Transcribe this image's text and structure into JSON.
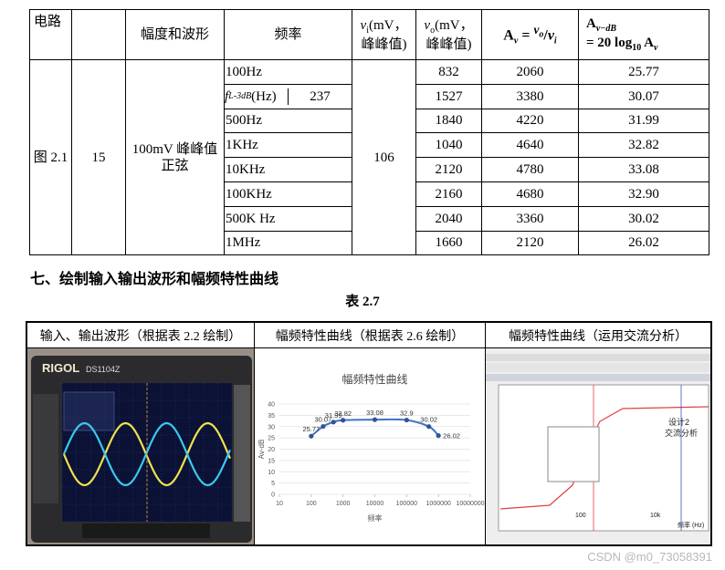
{
  "table": {
    "header": {
      "circuit": "电路",
      "waveform": "幅度和波形",
      "freq": "频率",
      "vi": {
        "v": "v",
        "sub": "i",
        "unit": "(mV，",
        "line2": "峰峰值)"
      },
      "vo": {
        "v": "v",
        "sub": "o",
        "unit": "(mV，",
        "line2": "峰峰值)"
      },
      "av": {
        "a": "A",
        "a_sub": "v",
        "eq": "=",
        "num": "v",
        "num_sub": "o",
        "slash": "/",
        "den": "v",
        "den_sub": "i"
      },
      "avdb": {
        "a": "A",
        "a_sub": "v−dB",
        "eq": "= 20 log",
        "log_sub": "10",
        "a2": "A",
        "a2_sub": "v"
      }
    },
    "circuit": "图 2.1",
    "col2": "15",
    "waveform": [
      "100mV 峰峰值",
      "正弦"
    ],
    "vi": "106",
    "rows": [
      {
        "freq": "100Hz",
        "vo": "832",
        "av": "2060",
        "db": "25.77"
      },
      {
        "freq_symbol": "f",
        "freq_sub": "L-3dB",
        "freq_unit": " (Hz)",
        "freq_value": "237",
        "vo": "1527",
        "av": "3380",
        "db": "30.07"
      },
      {
        "freq": "500Hz",
        "vo": "1840",
        "av": "4220",
        "db": "31.99"
      },
      {
        "freq": "1KHz",
        "vo": "1040",
        "av": "4640",
        "db": "32.82"
      },
      {
        "freq": "10KHz",
        "vo": "2120",
        "av": "4780",
        "db": "33.08"
      },
      {
        "freq": "100KHz",
        "vo": "2160",
        "av": "4680",
        "db": "32.90"
      },
      {
        "freq": "500K Hz",
        "vo": "2040",
        "av": "3360",
        "db": "30.02"
      },
      {
        "freq": "1MHz",
        "vo": "1660",
        "av": "2120",
        "db": "26.02"
      }
    ]
  },
  "heading": "七、绘制输入输出波形和幅频特性曲线",
  "caption": "表 2.7",
  "table2": {
    "headers": [
      "输入、输出波形（根据表 2.2 绘制）",
      "幅频特性曲线（根据表 2.6 绘制）",
      "幅频特性曲线（运用交流分析）"
    ]
  },
  "left_panel": {
    "brand": "RIGOL",
    "model": "DS1104Z"
  },
  "right_panel": {
    "label1": "设计2",
    "label2": "交流分析",
    "xlabel": "频率 (Hz)",
    "xtick1": "100",
    "xtick2": "10k"
  },
  "chart_data": {
    "type": "line",
    "title": "幅频特性曲线",
    "x_label": "频率",
    "y_label": "Av-dB",
    "x": [
      100,
      237,
      500,
      1000,
      10000,
      100000,
      500000,
      1000000
    ],
    "values": [
      25.77,
      30.07,
      31.99,
      32.82,
      33.08,
      32.9,
      30.02,
      26.02
    ],
    "color": "#4472c4",
    "xlog": true,
    "xlim": [
      10,
      10000000
    ],
    "xticks": [
      10,
      100,
      1000,
      10000,
      100000,
      1000000,
      10000000
    ],
    "ylim": [
      0,
      40
    ],
    "yticks": [
      0,
      5,
      10,
      15,
      20,
      25,
      30,
      35,
      40
    ],
    "grid": true
  },
  "watermark": "CSDN @m0_73058391"
}
